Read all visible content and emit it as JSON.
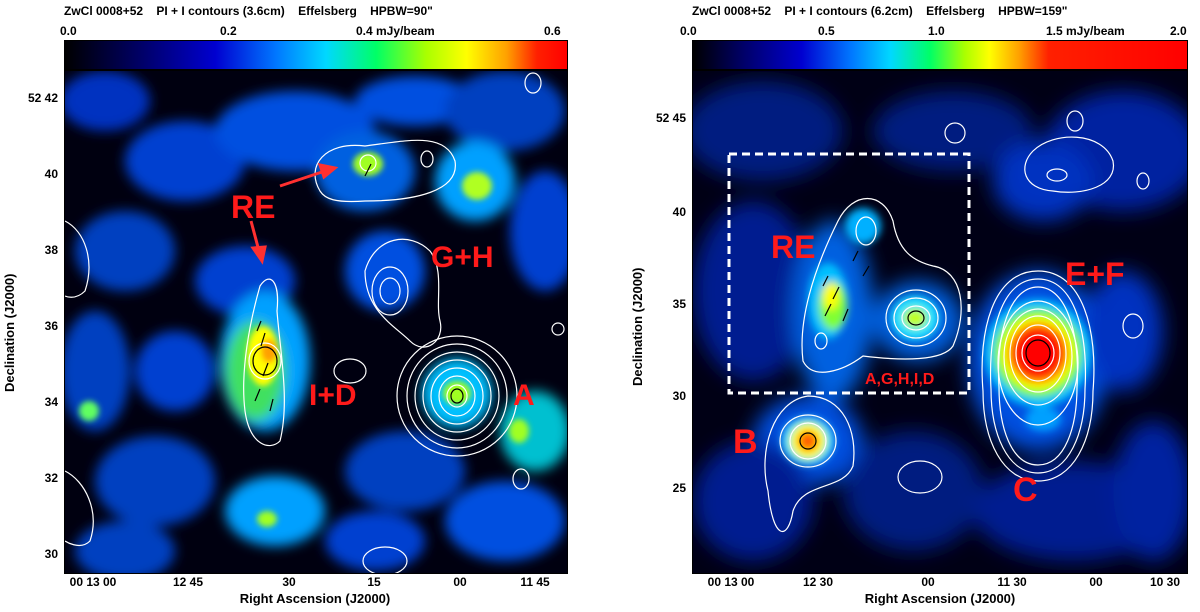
{
  "left": {
    "title": "ZwCl 0008+52    PI + I contours (3.6cm)    Effelsberg    HPBW=90\"",
    "colorbar_ticks": [
      "0.0",
      "0.2",
      "0.4 mJy/beam",
      "0.6"
    ],
    "y_ticks": [
      "52 42",
      "40",
      "38",
      "36",
      "34",
      "32",
      "30"
    ],
    "x_ticks": [
      "00 13 00",
      "12 45",
      "30",
      "15",
      "00",
      "11 45"
    ],
    "xlabel": "Right Ascension (J2000)",
    "ylabel": "Declination (J2000)",
    "labels": {
      "re": "RE",
      "gh": "G+H",
      "id": "I+D",
      "a": "A"
    }
  },
  "right": {
    "title": "ZwCl 0008+52    PI + I contours (6.2cm)    Effelsberg    HPBW=159\"",
    "colorbar_ticks": [
      "0.0",
      "0.5",
      "1.0",
      "1.5 mJy/beam",
      "2.0"
    ],
    "y_ticks": [
      "52 45",
      "40",
      "35",
      "30",
      "25"
    ],
    "x_ticks": [
      "00 13 00",
      "12 30",
      "00",
      "11 30",
      "00",
      "10 30"
    ],
    "xlabel": "Right Ascension (J2000)",
    "ylabel": "Declination (J2000)",
    "labels": {
      "re": "RE",
      "ef": "E+F",
      "b": "B",
      "c": "C",
      "box": "A,G,H,I,D"
    }
  }
}
